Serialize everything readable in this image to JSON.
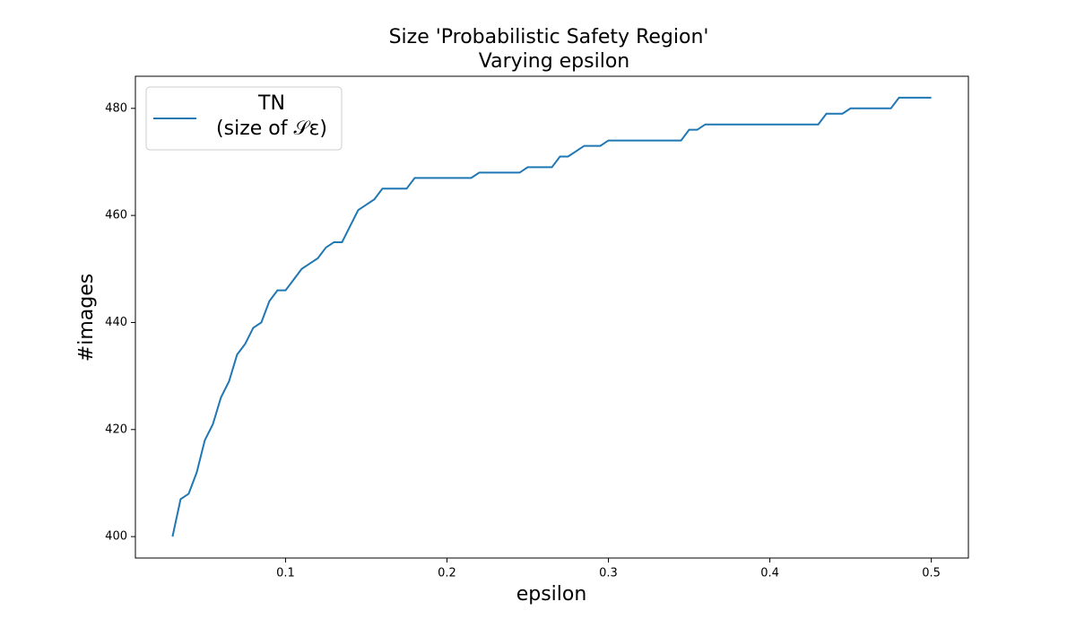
{
  "chart_data": {
    "type": "line",
    "title": "Size 'Probabilistic Safety Region'",
    "subtitle": "Varying epsilon",
    "x_label": "epsilon",
    "y_label": "#images",
    "x": [
      0.03,
      0.035,
      0.04,
      0.045,
      0.05,
      0.055,
      0.06,
      0.065,
      0.07,
      0.075,
      0.08,
      0.085,
      0.09,
      0.095,
      0.1,
      0.105,
      0.11,
      0.115,
      0.12,
      0.125,
      0.13,
      0.135,
      0.14,
      0.145,
      0.15,
      0.155,
      0.16,
      0.165,
      0.17,
      0.175,
      0.18,
      0.185,
      0.19,
      0.195,
      0.2,
      0.205,
      0.21,
      0.215,
      0.22,
      0.225,
      0.23,
      0.235,
      0.24,
      0.245,
      0.25,
      0.255,
      0.26,
      0.265,
      0.27,
      0.275,
      0.28,
      0.285,
      0.29,
      0.295,
      0.3,
      0.305,
      0.31,
      0.315,
      0.32,
      0.325,
      0.33,
      0.335,
      0.34,
      0.345,
      0.35,
      0.355,
      0.36,
      0.365,
      0.37,
      0.375,
      0.38,
      0.385,
      0.39,
      0.395,
      0.4,
      0.405,
      0.41,
      0.415,
      0.42,
      0.425,
      0.43,
      0.435,
      0.44,
      0.445,
      0.45,
      0.455,
      0.46,
      0.465,
      0.47,
      0.475,
      0.48,
      0.485,
      0.49,
      0.495,
      0.5
    ],
    "series": [
      {
        "name": "TN\n(size of 𝒮ε)",
        "color": "#1f77b4",
        "values": [
          400,
          407,
          408,
          412,
          418,
          421,
          426,
          429,
          434,
          436,
          439,
          440,
          444,
          446,
          446,
          448,
          450,
          451,
          452,
          454,
          455,
          455,
          458,
          461,
          462,
          463,
          465,
          465,
          465,
          465,
          467,
          467,
          467,
          467,
          467,
          467,
          467,
          467,
          468,
          468,
          468,
          468,
          468,
          468,
          469,
          469,
          469,
          469,
          471,
          471,
          472,
          473,
          473,
          473,
          474,
          474,
          474,
          474,
          474,
          474,
          474,
          474,
          474,
          474,
          476,
          476,
          477,
          477,
          477,
          477,
          477,
          477,
          477,
          477,
          477,
          477,
          477,
          477,
          477,
          477,
          477,
          479,
          479,
          479,
          480,
          480,
          480,
          480,
          480,
          480,
          482,
          482,
          482,
          482,
          482
        ]
      }
    ],
    "xlim": [
      0.007,
      0.523
    ],
    "ylim": [
      396,
      486
    ],
    "xticks": [
      0.1,
      0.2,
      0.3,
      0.4,
      0.5
    ],
    "yticks": [
      400,
      420,
      440,
      460,
      480
    ],
    "grid": false,
    "legend": "upper left"
  }
}
